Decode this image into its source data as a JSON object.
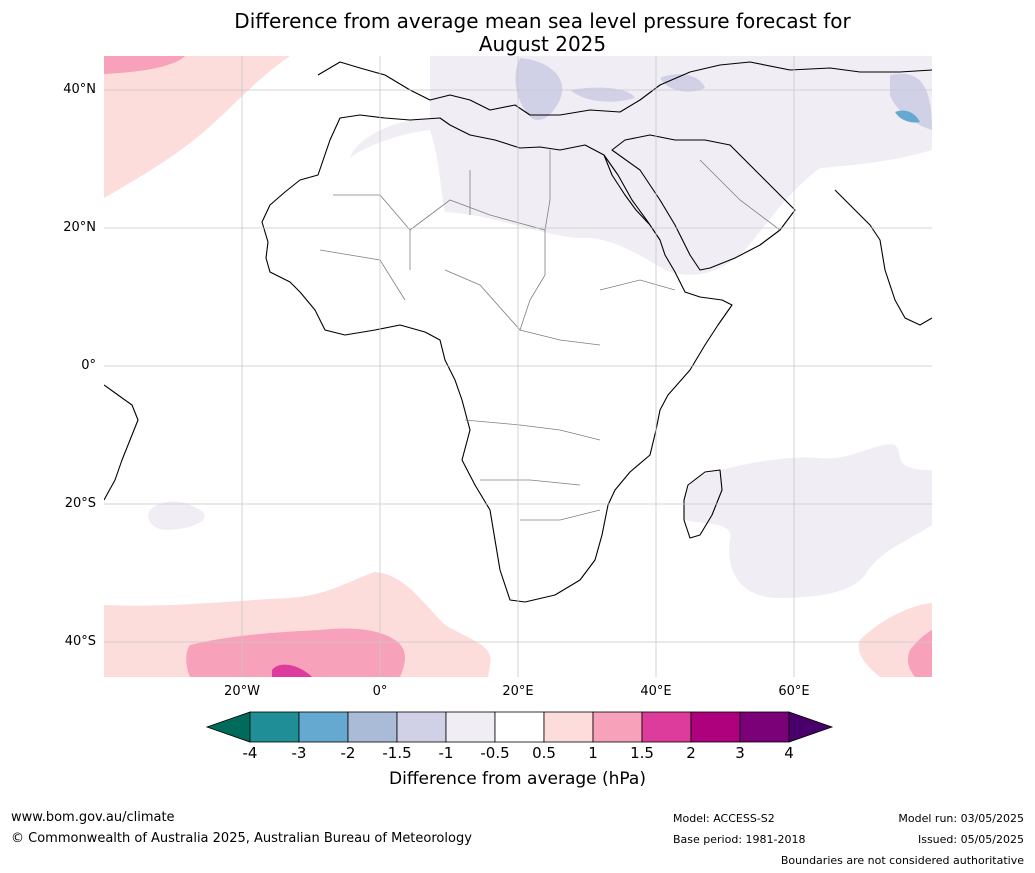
{
  "title_line1": "Difference from average mean sea level pressure forecast for",
  "title_line2": "August 2025",
  "map": {
    "lat_labels": [
      "40°N",
      "20°N",
      "0°",
      "20°S",
      "40°S"
    ],
    "lon_labels": [
      "20°W",
      "0°",
      "20°E",
      "40°E",
      "60°E"
    ],
    "colors": {
      "grid": "#c8c8c8",
      "coast": "#000000",
      "border": "#808080",
      "pale_lavender": "#f1edf4",
      "pale_pink": "#fddcdc",
      "pink": "#f7a1ba",
      "magenta": "#de3c9c",
      "light_blue": "#a9bbd6"
    }
  },
  "colorbar": {
    "labels": [
      "-4",
      "-3",
      "-2",
      "-1.5",
      "-1",
      "-0.5",
      "0.5",
      "1",
      "1.5",
      "2",
      "3",
      "4"
    ],
    "colors": [
      "#006a5b",
      "#1f8e96",
      "#65a8d0",
      "#a9bbd6",
      "#d0d1e6",
      "#f1edf4",
      "#ffffff",
      "#fddcdc",
      "#f7a1ba",
      "#de3c9c",
      "#ae017e",
      "#7a0177",
      "#49006a"
    ],
    "title": "Difference from average (hPa)"
  },
  "footer": {
    "website": "www.bom.gov.au/climate",
    "copyright": "© Commonwealth of Australia 2025, Australian Bureau of Meteorology",
    "model": "Model: ACCESS-S2",
    "base_period": "Base period: 1981-2018",
    "model_run": "Model run: 03/05/2025",
    "issued": "Issued: 05/05/2025",
    "disclaimer": "Boundaries are not considered authoritative"
  }
}
